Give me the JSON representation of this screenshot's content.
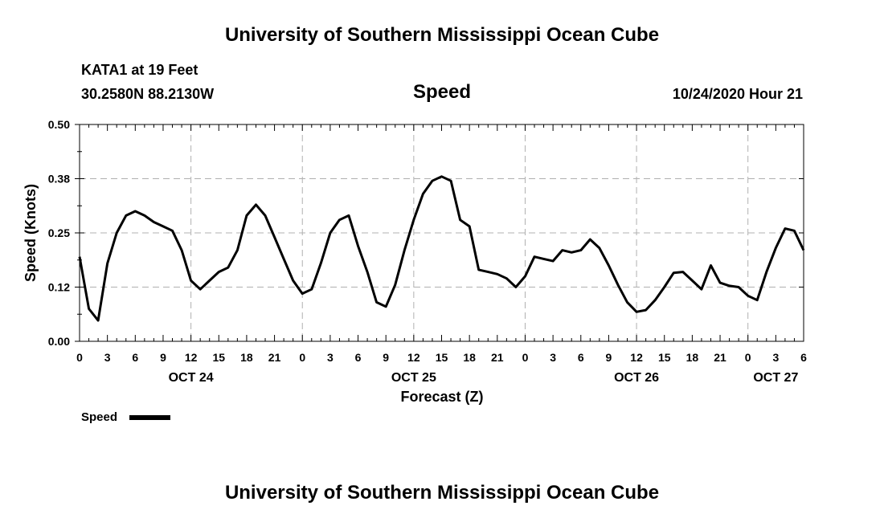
{
  "header": {
    "title": "University of Southern Mississippi Ocean Cube",
    "station": "KATA1 at 19 Feet",
    "coords": "30.2580N 88.2130W",
    "variable": "Speed",
    "datetime": "10/24/2020 Hour 21"
  },
  "footer": {
    "title": "University of Southern Mississippi Ocean Cube"
  },
  "legend": {
    "label": "Speed",
    "placement": "bottom-left"
  },
  "chart_data": {
    "type": "line",
    "title": "Speed",
    "xlabel": "Forecast (Z)",
    "ylabel": "Speed (Knots)",
    "xlim": [
      0,
      78
    ],
    "ylim": [
      0,
      0.5
    ],
    "yticks": [
      "0.00",
      "0.12",
      "0.25",
      "0.38",
      "0.50"
    ],
    "ytick_values": [
      0,
      0.125,
      0.25,
      0.375,
      0.5
    ],
    "xtick_labels": [
      "0",
      "3",
      "6",
      "9",
      "12",
      "15",
      "18",
      "21",
      "0",
      "3",
      "6",
      "9",
      "12",
      "15",
      "18",
      "21",
      "0",
      "3",
      "6",
      "9",
      "12",
      "15",
      "18",
      "21",
      "0",
      "3",
      "6"
    ],
    "date_labels": [
      {
        "hour": 12,
        "label": "OCT 24"
      },
      {
        "hour": 36,
        "label": "OCT 25"
      },
      {
        "hour": 60,
        "label": "OCT 26"
      },
      {
        "hour": 75,
        "label": "OCT 27"
      }
    ],
    "grid": true,
    "series": [
      {
        "name": "Speed",
        "color": "#000000",
        "x": [
          0,
          1,
          2,
          3,
          4,
          5,
          6,
          7,
          8,
          9,
          10,
          11,
          12,
          13,
          14,
          15,
          16,
          17,
          18,
          19,
          20,
          21,
          22,
          23,
          24,
          25,
          26,
          27,
          28,
          29,
          30,
          31,
          32,
          33,
          34,
          35,
          36,
          37,
          38,
          39,
          40,
          41,
          42,
          43,
          44,
          45,
          46,
          47,
          48,
          49,
          50,
          51,
          52,
          53,
          54,
          55,
          56,
          57,
          58,
          59,
          60,
          61,
          62,
          63,
          64,
          65,
          66,
          67,
          68,
          69,
          70,
          71,
          72,
          73,
          74,
          75,
          76,
          77,
          78
        ],
        "y": [
          0.195,
          0.075,
          0.048,
          0.18,
          0.25,
          0.29,
          0.3,
          0.29,
          0.275,
          0.265,
          0.255,
          0.21,
          0.14,
          0.12,
          0.14,
          0.16,
          0.17,
          0.21,
          0.29,
          0.315,
          0.29,
          0.24,
          0.19,
          0.14,
          0.11,
          0.12,
          0.18,
          0.25,
          0.28,
          0.29,
          0.22,
          0.16,
          0.09,
          0.08,
          0.13,
          0.21,
          0.28,
          0.34,
          0.37,
          0.38,
          0.37,
          0.28,
          0.265,
          0.165,
          0.16,
          0.155,
          0.145,
          0.125,
          0.15,
          0.195,
          0.19,
          0.185,
          0.21,
          0.205,
          0.21,
          0.235,
          0.215,
          0.175,
          0.13,
          0.09,
          0.068,
          0.072,
          0.095,
          0.125,
          0.158,
          0.16,
          0.14,
          0.12,
          0.175,
          0.135,
          0.128,
          0.125,
          0.105,
          0.095,
          0.16,
          0.215,
          0.26,
          0.255,
          0.21
        ]
      }
    ]
  }
}
